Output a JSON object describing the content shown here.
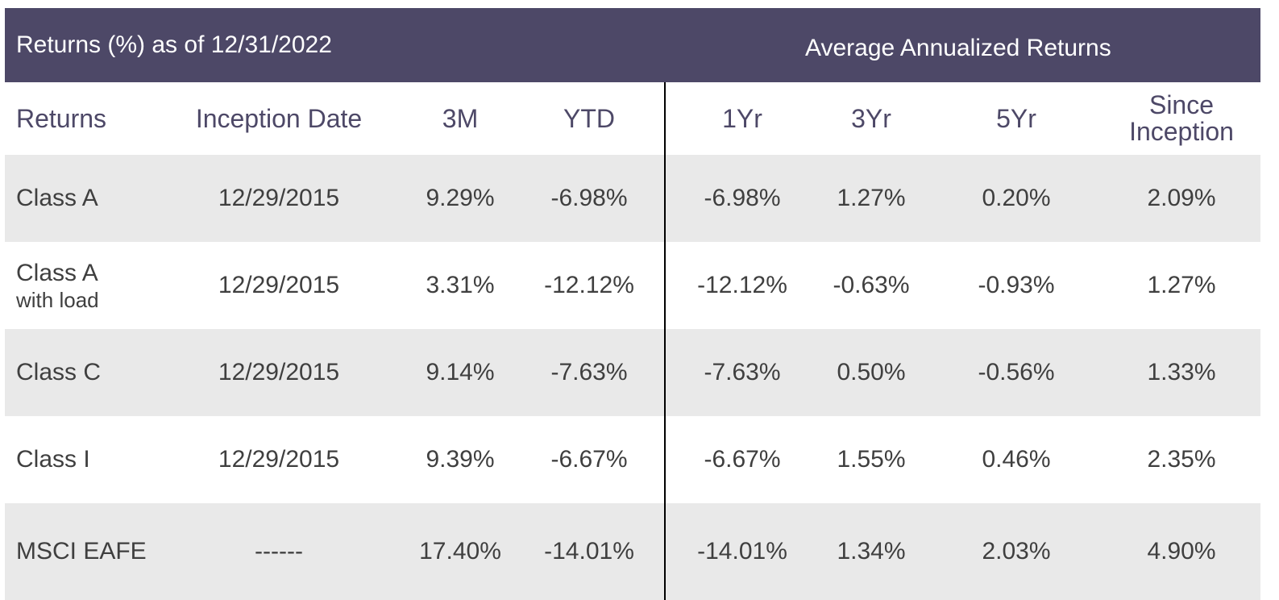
{
  "title_left": "Returns (%) as of 12/31/2022",
  "title_right": "Average Annualized Returns",
  "headers": {
    "returns": "Returns",
    "inception_date": "Inception Date",
    "m3": "3M",
    "ytd": "YTD",
    "yr1": "1Yr",
    "yr3": "3Yr",
    "yr5": "5Yr",
    "since_inception_line1": "Since",
    "since_inception_line2": "Inception"
  },
  "rows": [
    {
      "name": "Class A",
      "sub": "",
      "inception": "12/29/2015",
      "m3": "9.29%",
      "ytd": "-6.98%",
      "yr1": "-6.98%",
      "yr3": "1.27%",
      "yr5": "0.20%",
      "since": "2.09%"
    },
    {
      "name": "Class A",
      "sub": "with load",
      "inception": "12/29/2015",
      "m3": "3.31%",
      "ytd": "-12.12%",
      "yr1": "-12.12%",
      "yr3": "-0.63%",
      "yr5": "-0.93%",
      "since": "1.27%"
    },
    {
      "name": "Class C",
      "sub": "",
      "inception": "12/29/2015",
      "m3": "9.14%",
      "ytd": "-7.63%",
      "yr1": "-7.63%",
      "yr3": "0.50%",
      "yr5": "-0.56%",
      "since": "1.33%"
    },
    {
      "name": "Class I",
      "sub": "",
      "inception": "12/29/2015",
      "m3": "9.39%",
      "ytd": "-6.67%",
      "yr1": "-6.67%",
      "yr3": "1.55%",
      "yr5": "0.46%",
      "since": "2.35%"
    },
    {
      "name": "MSCI EAFE",
      "sub": "",
      "inception": "------",
      "m3": "17.40%",
      "ytd": "-14.01%",
      "yr1": "-14.01%",
      "yr3": "1.34%",
      "yr5": "2.03%",
      "since": "4.90%"
    }
  ],
  "colors": {
    "header_bg": "#4d4867",
    "row_shade": "#e9e9e9",
    "text": "#3f3f3f"
  }
}
